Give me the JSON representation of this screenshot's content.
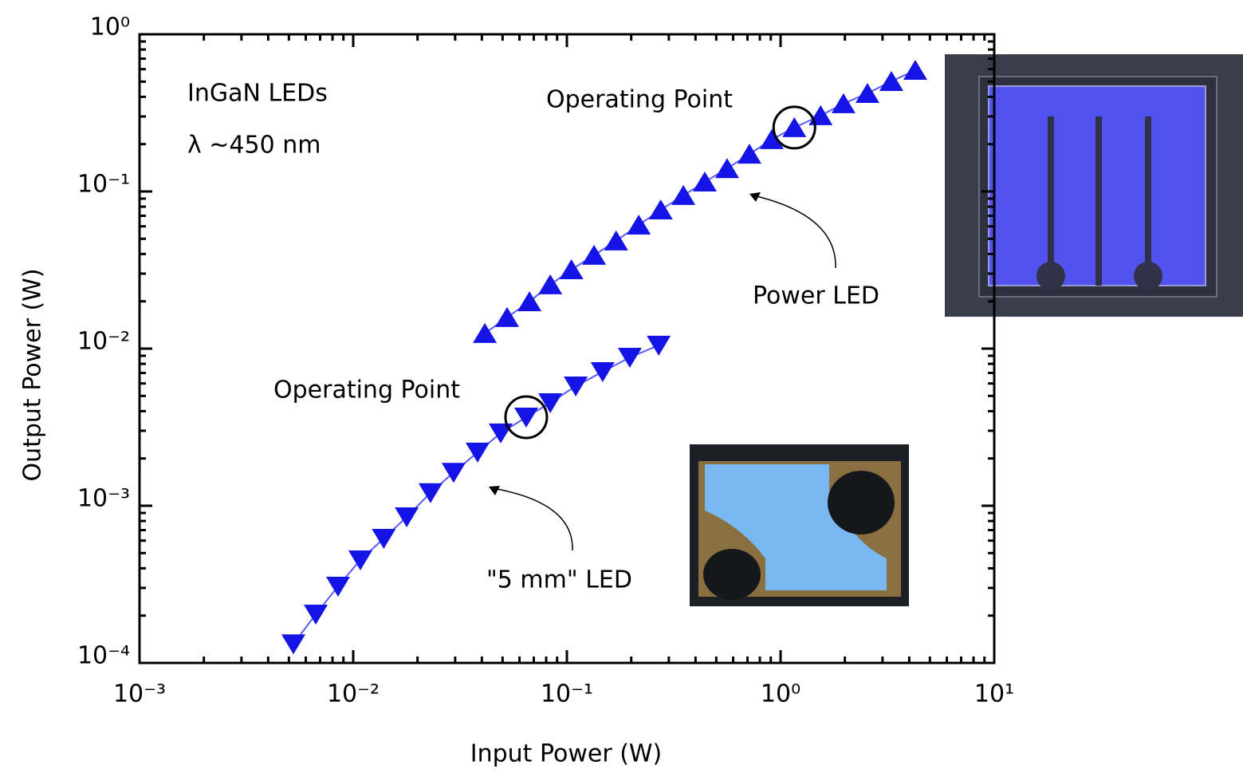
{
  "chart_data": {
    "type": "scatter",
    "x_label": "Input Power  (W)",
    "y_label": "Output Power  (W)",
    "log_x": true,
    "log_y": true,
    "xlim": [
      0.001,
      10
    ],
    "ylim": [
      0.0001,
      1
    ],
    "xticks": [
      {
        "value": 0.001,
        "label": "10⁻³"
      },
      {
        "value": 0.01,
        "label": "10⁻²"
      },
      {
        "value": 0.1,
        "label": "10⁻¹"
      },
      {
        "value": 1,
        "label": "10⁰"
      },
      {
        "value": 10,
        "label": "10¹"
      }
    ],
    "yticks": [
      {
        "value": 0.0001,
        "label": "10⁻⁴"
      },
      {
        "value": 0.001,
        "label": "10⁻³"
      },
      {
        "value": 0.01,
        "label": "10⁻²"
      },
      {
        "value": 0.1,
        "label": "10⁻¹"
      },
      {
        "value": 1,
        "label": "10⁰"
      }
    ],
    "annotations": [
      "InGaN LEDs",
      "λ ~450 nm",
      "Operating Point",
      "Power LED",
      "Operating Point",
      "\"5 mm\" LED"
    ],
    "series": [
      {
        "name": "Power LED",
        "marker": "triangle-up",
        "color": "#1414e6",
        "x": [
          0.0413,
          0.0525,
          0.0668,
          0.0836,
          0.105,
          0.134,
          0.17,
          0.217,
          0.275,
          0.351,
          0.442,
          0.562,
          0.715,
          0.91,
          1.16,
          1.54,
          1.97,
          2.55,
          3.3,
          4.27
        ],
        "values": [
          0.0125,
          0.0158,
          0.0199,
          0.0255,
          0.0318,
          0.0393,
          0.0485,
          0.0612,
          0.0764,
          0.0944,
          0.115,
          0.14,
          0.173,
          0.214,
          0.255,
          0.304,
          0.362,
          0.421,
          0.502,
          0.591
        ]
      },
      {
        "name": "\"5 mm\" LED",
        "marker": "triangle-down",
        "color": "#1414e6",
        "x": [
          0.00525,
          0.00668,
          0.00849,
          0.0108,
          0.0139,
          0.0178,
          0.023,
          0.0295,
          0.0382,
          0.049,
          0.0645,
          0.0836,
          0.11,
          0.147,
          0.197,
          0.269
        ],
        "values": [
          0.000132,
          0.000204,
          0.000307,
          0.000452,
          0.000619,
          0.000849,
          0.00121,
          0.00163,
          0.00219,
          0.0029,
          0.00366,
          0.00452,
          0.00577,
          0.00712,
          0.00879,
          0.0105
        ]
      }
    ]
  }
}
